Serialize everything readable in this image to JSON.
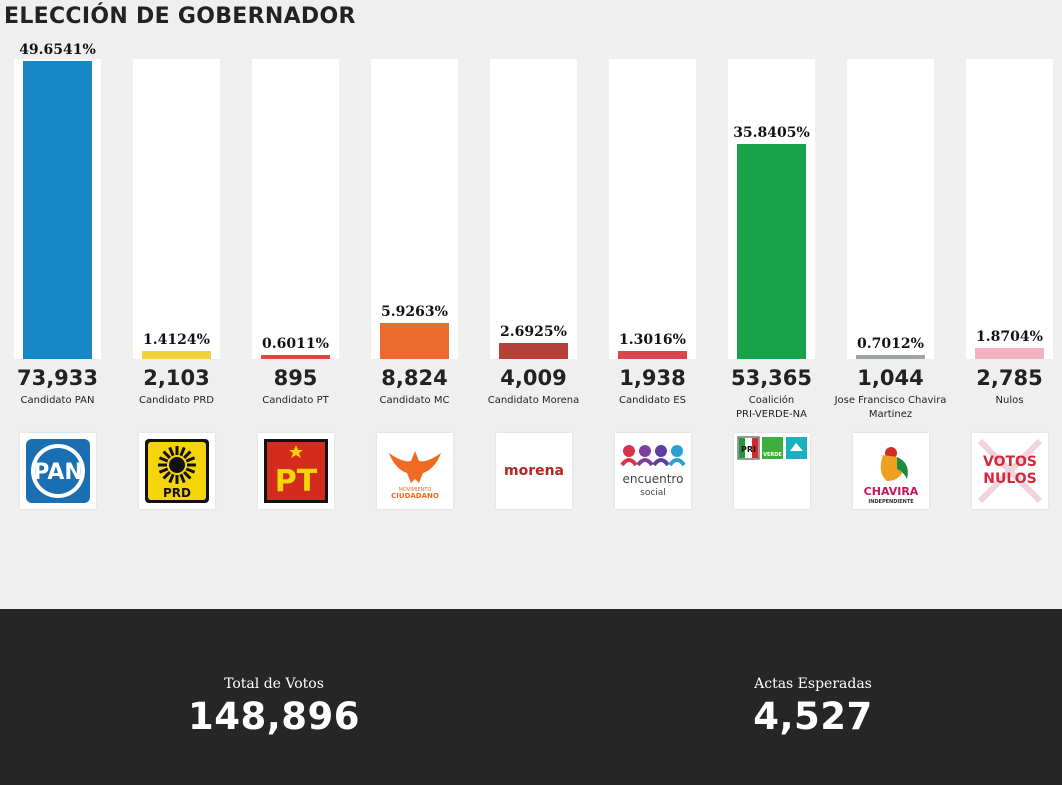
{
  "header": {
    "title": "ELECCIÓN DE GOBERNADOR"
  },
  "chart_data": {
    "type": "bar",
    "ylim": [
      0,
      100
    ],
    "categories": [
      "Candidato PAN",
      "Candidato PRD",
      "Candidato PT",
      "Candidato MC",
      "Candidato Morena",
      "Candidato ES",
      "Coalición PRI-VERDE-NA",
      "Jose Francisco Chavira Martinez",
      "Nulos"
    ],
    "bars": [
      {
        "candidate": "Candidato PAN",
        "pct": 49.6541,
        "pct_label": "49.6541%",
        "votes": "73,933",
        "color": "#1787c7",
        "logo": "pan-logo",
        "logo_text": "PAN"
      },
      {
        "candidate": "Candidato PRD",
        "pct": 1.4124,
        "pct_label": "1.4124%",
        "votes": "2,103",
        "color": "#f2d33a",
        "logo": "prd-logo",
        "logo_text": "PRD"
      },
      {
        "candidate": "Candidato PT",
        "pct": 0.6011,
        "pct_label": "0.6011%",
        "votes": "895",
        "color": "#d94a3d",
        "logo": "pt-logo",
        "logo_text": "PT"
      },
      {
        "candidate": "Candidato MC",
        "pct": 5.9263,
        "pct_label": "5.9263%",
        "votes": "8,824",
        "color": "#ee6b2f",
        "logo": "mc-logo",
        "logo_text": "MOVIMIENTO CIUDADANO"
      },
      {
        "candidate": "Candidato Morena",
        "pct": 2.6925,
        "pct_label": "2.6925%",
        "votes": "4,009",
        "color": "#b5413a",
        "logo": "morena-logo",
        "logo_text": "morena"
      },
      {
        "candidate": "Candidato ES",
        "pct": 1.3016,
        "pct_label": "1.3016%",
        "votes": "1,938",
        "color": "#d8474e",
        "logo": "es-logo",
        "logo_text": "encuentro social"
      },
      {
        "candidate": "Coalición PRI-VERDE-NA",
        "pct": 35.8405,
        "pct_label": "35.8405%",
        "votes": "53,365",
        "color": "#18a34a",
        "logo": "coalicion-logo",
        "logo_text": "PRI VERDE"
      },
      {
        "candidate": "Jose Francisco Chavira Martinez",
        "pct": 0.7012,
        "pct_label": "0.7012%",
        "votes": "1,044",
        "color": "#9aa4a6",
        "logo": "chavira-logo",
        "logo_text": "CHAVIRA INDEPENDIENTE"
      },
      {
        "candidate": "Nulos",
        "pct": 1.8704,
        "pct_label": "1.8704%",
        "votes": "2,785",
        "color": "#f0b3c0",
        "logo": "votos-nulos-logo",
        "logo_text": "VOTOS NULOS"
      }
    ],
    "candidate_lines": [
      [
        "Candidato PAN"
      ],
      [
        "Candidato PRD"
      ],
      [
        "Candidato PT"
      ],
      [
        "Candidato MC"
      ],
      [
        "Candidato Morena"
      ],
      [
        "Candidato ES"
      ],
      [
        "Coalición",
        "PRI-VERDE-NA"
      ],
      [
        "Jose Francisco Chavira",
        "Martinez"
      ],
      [
        "Nulos"
      ]
    ]
  },
  "footer": {
    "total_label": "Total de Votos",
    "total_value": "148,896",
    "actas_label": "Actas Esperadas",
    "actas_value": "4,527"
  }
}
